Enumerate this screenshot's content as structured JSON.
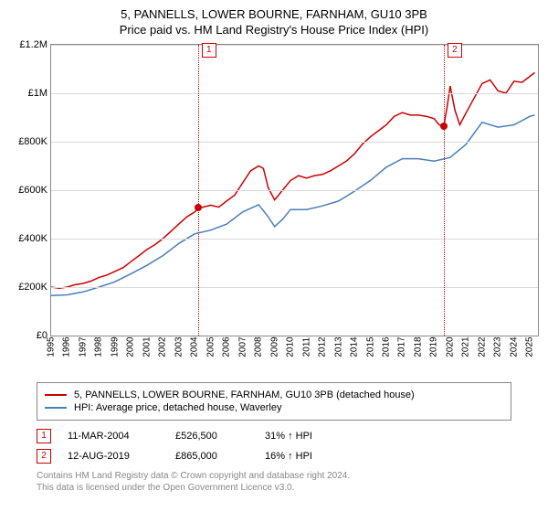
{
  "title_line1": "5, PANNELLS, LOWER BOURNE, FARNHAM, GU10 3PB",
  "title_line2": "Price paid vs. HM Land Registry's House Price Index (HPI)",
  "chart": {
    "type": "line",
    "background_color": "#ffffff",
    "border_color": "#888888",
    "grid_color": "#d9d9d9",
    "ylim": [
      0,
      1200000
    ],
    "ytick_step": 200000,
    "ytick_labels": [
      "£0",
      "£200K",
      "£400K",
      "£600K",
      "£800K",
      "£1M",
      "£1.2M"
    ],
    "xlim": [
      1995,
      2025.5
    ],
    "xticks": [
      1995,
      1996,
      1997,
      1998,
      1999,
      2000,
      2001,
      2002,
      2003,
      2004,
      2005,
      2006,
      2007,
      2008,
      2009,
      2010,
      2011,
      2012,
      2013,
      2014,
      2015,
      2016,
      2017,
      2018,
      2019,
      2020,
      2021,
      2022,
      2023,
      2024,
      2025
    ],
    "series": [
      {
        "name": "property",
        "color": "#cc0000",
        "line_width": 1.5,
        "points": [
          [
            1995,
            200000
          ],
          [
            1995.5,
            195000
          ],
          [
            1996,
            200000
          ],
          [
            1996.5,
            210000
          ],
          [
            1997,
            215000
          ],
          [
            1997.5,
            225000
          ],
          [
            1998,
            240000
          ],
          [
            1998.5,
            250000
          ],
          [
            1999,
            265000
          ],
          [
            1999.5,
            280000
          ],
          [
            2000,
            305000
          ],
          [
            2000.5,
            330000
          ],
          [
            2001,
            355000
          ],
          [
            2001.5,
            375000
          ],
          [
            2002,
            400000
          ],
          [
            2002.5,
            430000
          ],
          [
            2003,
            460000
          ],
          [
            2003.5,
            490000
          ],
          [
            2004,
            510000
          ],
          [
            2004.2,
            526500
          ],
          [
            2004.5,
            530000
          ],
          [
            2005,
            538000
          ],
          [
            2005.5,
            530000
          ],
          [
            2006,
            555000
          ],
          [
            2006.5,
            580000
          ],
          [
            2007,
            630000
          ],
          [
            2007.5,
            680000
          ],
          [
            2008,
            700000
          ],
          [
            2008.3,
            690000
          ],
          [
            2008.6,
            610000
          ],
          [
            2009,
            560000
          ],
          [
            2009.5,
            600000
          ],
          [
            2010,
            640000
          ],
          [
            2010.5,
            660000
          ],
          [
            2011,
            650000
          ],
          [
            2011.5,
            660000
          ],
          [
            2012,
            665000
          ],
          [
            2012.5,
            680000
          ],
          [
            2013,
            700000
          ],
          [
            2013.5,
            720000
          ],
          [
            2014,
            750000
          ],
          [
            2014.5,
            790000
          ],
          [
            2015,
            820000
          ],
          [
            2015.5,
            845000
          ],
          [
            2016,
            870000
          ],
          [
            2016.5,
            905000
          ],
          [
            2017,
            920000
          ],
          [
            2017.5,
            910000
          ],
          [
            2018,
            910000
          ],
          [
            2018.5,
            905000
          ],
          [
            2019,
            895000
          ],
          [
            2019.3,
            870000
          ],
          [
            2019.6,
            865000
          ],
          [
            2019.8,
            940000
          ],
          [
            2020,
            1030000
          ],
          [
            2020.3,
            930000
          ],
          [
            2020.6,
            870000
          ],
          [
            2021,
            920000
          ],
          [
            2021.5,
            980000
          ],
          [
            2022,
            1040000
          ],
          [
            2022.5,
            1055000
          ],
          [
            2023,
            1010000
          ],
          [
            2023.5,
            1000000
          ],
          [
            2024,
            1050000
          ],
          [
            2024.5,
            1045000
          ],
          [
            2025,
            1070000
          ],
          [
            2025.3,
            1085000
          ]
        ]
      },
      {
        "name": "hpi",
        "color": "#4a7ebb",
        "line_width": 1.5,
        "points": [
          [
            1995,
            165000
          ],
          [
            1996,
            168000
          ],
          [
            1997,
            180000
          ],
          [
            1998,
            200000
          ],
          [
            1999,
            222000
          ],
          [
            2000,
            255000
          ],
          [
            2001,
            290000
          ],
          [
            2002,
            330000
          ],
          [
            2003,
            380000
          ],
          [
            2004,
            420000
          ],
          [
            2005,
            435000
          ],
          [
            2006,
            460000
          ],
          [
            2007,
            510000
          ],
          [
            2008,
            540000
          ],
          [
            2008.6,
            490000
          ],
          [
            2009,
            450000
          ],
          [
            2009.5,
            480000
          ],
          [
            2010,
            520000
          ],
          [
            2011,
            520000
          ],
          [
            2012,
            535000
          ],
          [
            2013,
            555000
          ],
          [
            2014,
            595000
          ],
          [
            2015,
            640000
          ],
          [
            2016,
            695000
          ],
          [
            2017,
            730000
          ],
          [
            2018,
            730000
          ],
          [
            2019,
            720000
          ],
          [
            2020,
            735000
          ],
          [
            2021,
            790000
          ],
          [
            2022,
            880000
          ],
          [
            2023,
            860000
          ],
          [
            2024,
            870000
          ],
          [
            2025,
            905000
          ],
          [
            2025.3,
            910000
          ]
        ]
      }
    ],
    "reference_lines": [
      {
        "x": 2004.2,
        "color": "#cc0000",
        "badge": "1"
      },
      {
        "x": 2019.6,
        "color": "#cc0000",
        "badge": "2"
      }
    ],
    "markers": [
      {
        "x": 2004.2,
        "y": 526500,
        "color": "#cc0000"
      },
      {
        "x": 2019.6,
        "y": 865000,
        "color": "#cc0000"
      }
    ]
  },
  "legend": {
    "items": [
      {
        "color": "#cc0000",
        "label": "5, PANNELLS, LOWER BOURNE, FARNHAM, GU10 3PB (detached house)"
      },
      {
        "color": "#4a7ebb",
        "label": "HPI: Average price, detached house, Waverley"
      }
    ]
  },
  "events": [
    {
      "badge": "1",
      "color": "#cc0000",
      "date": "11-MAR-2004",
      "price": "£526,500",
      "pct": "31% ↑ HPI"
    },
    {
      "badge": "2",
      "color": "#cc0000",
      "date": "12-AUG-2019",
      "price": "£865,000",
      "pct": "16% ↑ HPI"
    }
  ],
  "footer_line1": "Contains HM Land Registry data © Crown copyright and database right 2024.",
  "footer_line2": "This data is licensed under the Open Government Licence v3.0."
}
